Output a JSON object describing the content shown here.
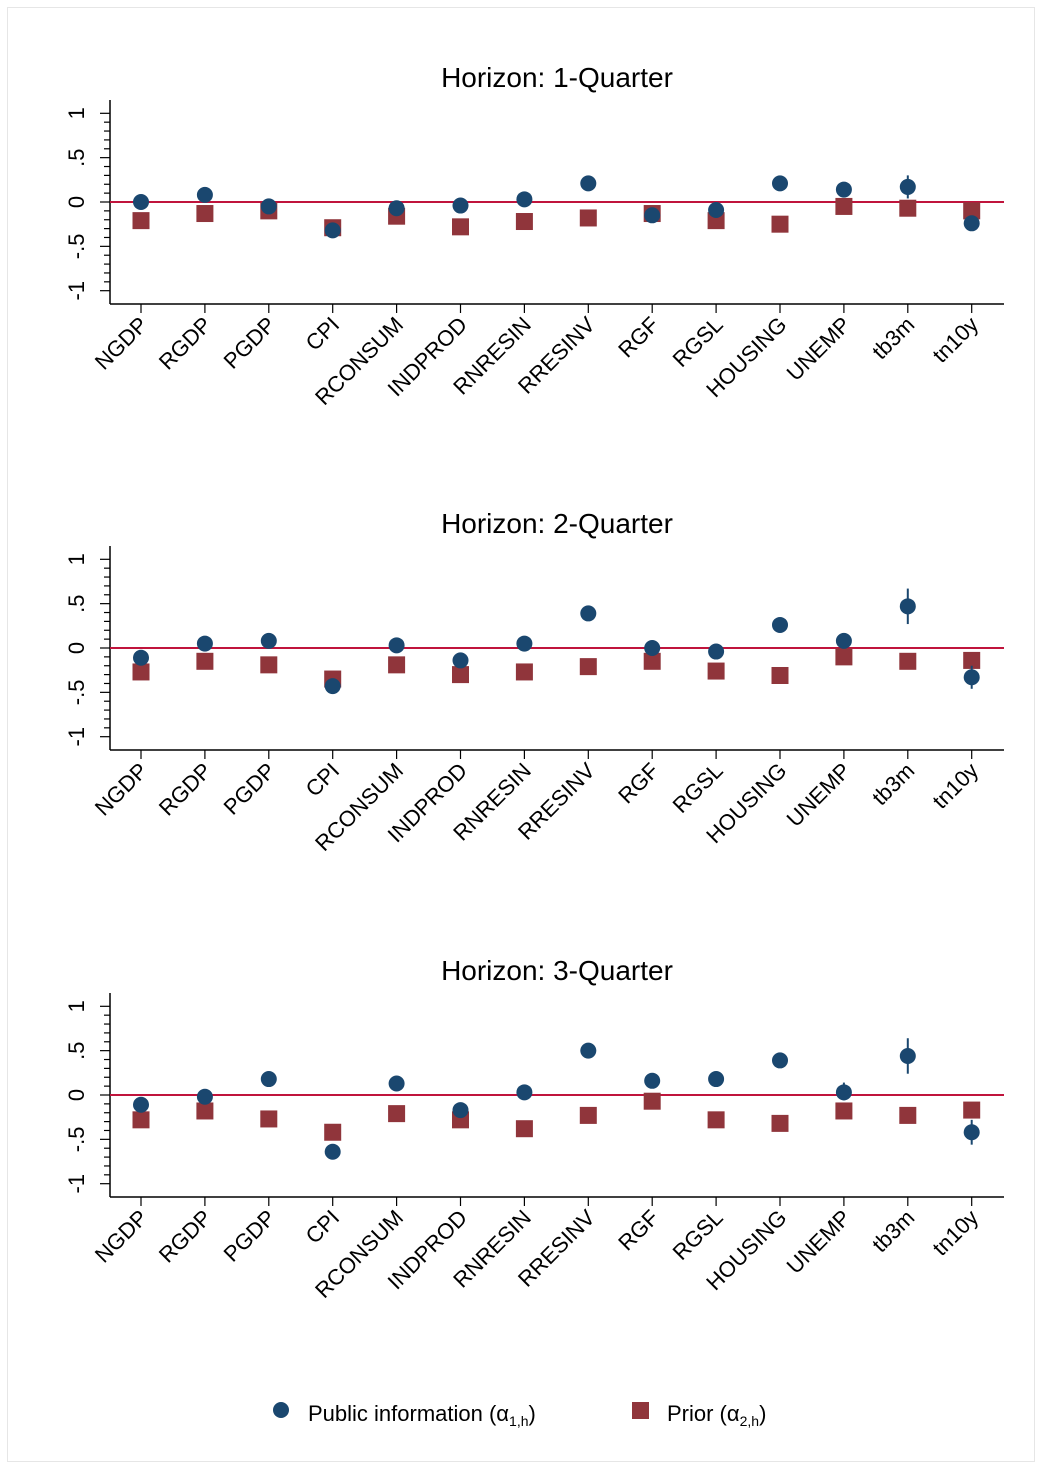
{
  "chart_data": [
    {
      "type": "scatter",
      "title": "Horizon: 1-Quarter",
      "categories": [
        "NGDP",
        "RGDP",
        "PGDP",
        "CPI",
        "RCONSUM",
        "INDPROD",
        "RNRESIN",
        "RRESINV",
        "RGF",
        "RGSL",
        "HOUSING",
        "UNEMP",
        "tb3m",
        "tn10y"
      ],
      "yticks": [
        "1",
        ".5",
        "0",
        "-.5",
        "-1"
      ],
      "ylim": [
        -1.15,
        1.15
      ],
      "series": [
        {
          "name": "Public information (α1,h)",
          "values": [
            0.0,
            0.08,
            -0.05,
            -0.32,
            -0.07,
            -0.04,
            0.03,
            0.21,
            -0.15,
            -0.09,
            0.21,
            0.14,
            0.17,
            -0.24
          ],
          "ci": [
            null,
            null,
            null,
            null,
            null,
            null,
            null,
            null,
            null,
            null,
            null,
            null,
            [
              0.04,
              0.3
            ],
            null
          ]
        },
        {
          "name": "Prior (α2,h)",
          "values": [
            -0.21,
            -0.13,
            -0.1,
            -0.29,
            -0.16,
            -0.28,
            -0.22,
            -0.18,
            -0.13,
            -0.21,
            -0.25,
            -0.05,
            -0.07,
            -0.1
          ]
        }
      ]
    },
    {
      "type": "scatter",
      "title": "Horizon: 2-Quarter",
      "categories": [
        "NGDP",
        "RGDP",
        "PGDP",
        "CPI",
        "RCONSUM",
        "INDPROD",
        "RNRESIN",
        "RRESINV",
        "RGF",
        "RGSL",
        "HOUSING",
        "UNEMP",
        "tb3m",
        "tn10y"
      ],
      "yticks": [
        "1",
        ".5",
        "0",
        "-.5",
        "-1"
      ],
      "ylim": [
        -1.15,
        1.15
      ],
      "series": [
        {
          "name": "Public information (α1,h)",
          "values": [
            -0.11,
            0.05,
            0.08,
            -0.43,
            0.03,
            -0.14,
            0.05,
            0.39,
            0.0,
            -0.04,
            0.26,
            0.08,
            0.47,
            -0.33
          ],
          "ci": [
            null,
            null,
            null,
            null,
            null,
            null,
            null,
            null,
            null,
            null,
            null,
            null,
            [
              0.27,
              0.67
            ],
            [
              -0.46,
              -0.2
            ]
          ]
        },
        {
          "name": "Prior (α2,h)",
          "values": [
            -0.27,
            -0.15,
            -0.19,
            -0.35,
            -0.19,
            -0.3,
            -0.27,
            -0.21,
            -0.15,
            -0.26,
            -0.31,
            -0.1,
            -0.15,
            -0.14
          ]
        }
      ]
    },
    {
      "type": "scatter",
      "title": "Horizon: 3-Quarter",
      "categories": [
        "NGDP",
        "RGDP",
        "PGDP",
        "CPI",
        "RCONSUM",
        "INDPROD",
        "RNRESIN",
        "RRESINV",
        "RGF",
        "RGSL",
        "HOUSING",
        "UNEMP",
        "tb3m",
        "tn10y"
      ],
      "yticks": [
        "1",
        ".5",
        "0",
        "-.5",
        "-1"
      ],
      "ylim": [
        -1.15,
        1.15
      ],
      "series": [
        {
          "name": "Public information (α1,h)",
          "values": [
            -0.11,
            -0.02,
            0.18,
            -0.64,
            0.13,
            -0.17,
            0.03,
            0.5,
            0.16,
            0.18,
            0.39,
            0.03,
            0.44,
            -0.42
          ],
          "ci": [
            null,
            null,
            null,
            null,
            null,
            null,
            null,
            [
              0.42,
              0.58
            ],
            null,
            null,
            null,
            [
              -0.06,
              0.14
            ],
            [
              0.24,
              0.64
            ],
            [
              -0.56,
              -0.28
            ]
          ]
        },
        {
          "name": "Prior (α2,h)",
          "values": [
            -0.28,
            -0.18,
            -0.27,
            -0.42,
            -0.21,
            -0.28,
            -0.38,
            -0.23,
            -0.07,
            -0.28,
            -0.32,
            -0.18,
            -0.23,
            -0.17
          ]
        }
      ]
    }
  ],
  "legend": {
    "series1_label": "Public information (α",
    "series1_sub": "1,h",
    "series1_close": ")",
    "series2_label": "Prior (α",
    "series2_sub": "2,h",
    "series2_close": ")"
  },
  "colors": {
    "public": "#1a476f",
    "prior": "#90353b",
    "zero_line": "#c0143c"
  }
}
